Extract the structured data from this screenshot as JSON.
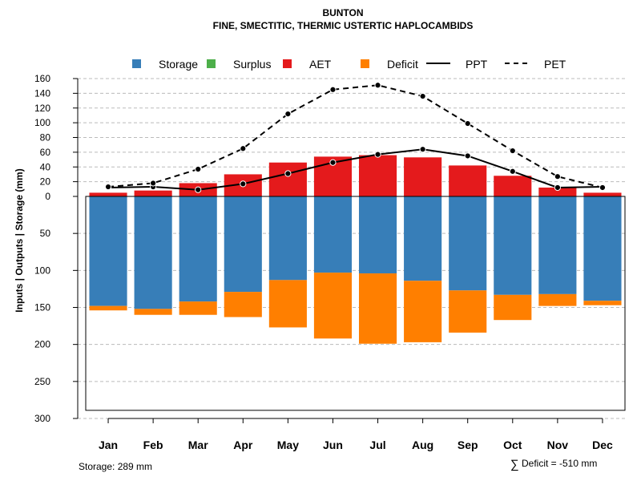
{
  "chart_data": {
    "type": "bar",
    "title": "BUNTON",
    "subtitle": "FINE, SMECTITIC, THERMIC USTERTIC HAPLOCAMBIDS",
    "ylabel": "Inputs | Outputs | Storage     (mm)",
    "categories": [
      "Jan",
      "Feb",
      "Mar",
      "Apr",
      "May",
      "Jun",
      "Jul",
      "Aug",
      "Sep",
      "Oct",
      "Nov",
      "Dec"
    ],
    "upper_axis": {
      "range": [
        0,
        160
      ],
      "ticks": [
        "0",
        "20",
        "40",
        "60",
        "80",
        "100",
        "120",
        "140",
        "160"
      ]
    },
    "lower_axis": {
      "range": [
        0,
        300
      ],
      "ticks": [
        "0",
        "50",
        "100",
        "150",
        "200",
        "250",
        "300"
      ]
    },
    "legend": [
      {
        "label": "Storage",
        "symbol": "square",
        "color": "#377EB8"
      },
      {
        "label": "Surplus",
        "symbol": "square",
        "color": "#4DAF4A"
      },
      {
        "label": "AET",
        "symbol": "square",
        "color": "#E41A1C"
      },
      {
        "label": "Deficit",
        "symbol": "square",
        "color": "#FF7F00"
      },
      {
        "label": "PPT",
        "symbol": "solid-line",
        "color": "#000000"
      },
      {
        "label": "PET",
        "symbol": "dashed-line",
        "color": "#000000"
      }
    ],
    "series": [
      {
        "name": "AET",
        "values": [
          5,
          8,
          18,
          30,
          46,
          54,
          56,
          53,
          42,
          28,
          12,
          5
        ]
      },
      {
        "name": "Surplus",
        "values": [
          0,
          0,
          0,
          0,
          0,
          0,
          0,
          0,
          0,
          0,
          0,
          0
        ]
      },
      {
        "name": "PPT",
        "values": [
          12,
          13,
          9,
          17,
          31,
          46,
          57,
          64,
          55,
          34,
          12,
          13
        ]
      },
      {
        "name": "PET",
        "values": [
          13,
          18,
          37,
          65,
          112,
          145,
          151,
          136,
          99,
          62,
          27,
          12
        ]
      },
      {
        "name": "Storage",
        "values": [
          148,
          152,
          142,
          129,
          113,
          103,
          104,
          114,
          127,
          133,
          132,
          141
        ]
      },
      {
        "name": "Deficit",
        "values": [
          6,
          8,
          18,
          34,
          64,
          89,
          95,
          83,
          57,
          34,
          16,
          6
        ]
      }
    ],
    "storage_capacity": 289,
    "grid": true
  },
  "footer": {
    "storage_text": "Storage: 289 mm",
    "deficit_symbol": "∑",
    "deficit_text": "Deficit = -510 mm"
  }
}
